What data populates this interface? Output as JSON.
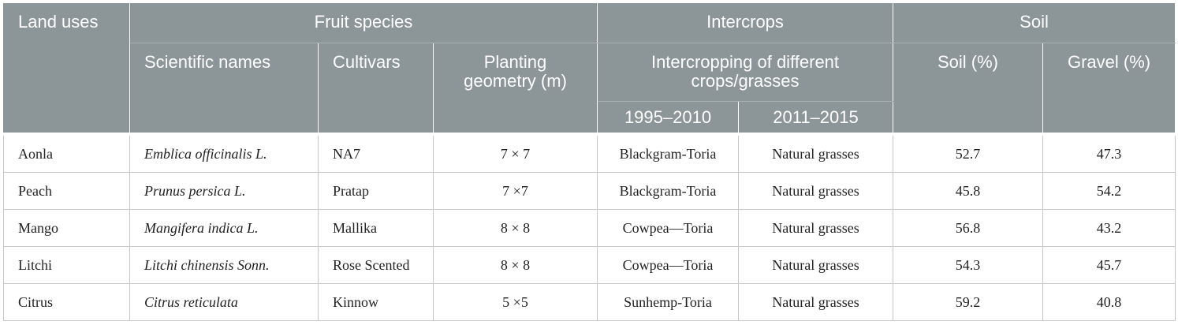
{
  "table": {
    "header": {
      "land_uses": "Land uses",
      "fruit_species": "Fruit species",
      "intercrops": "Intercrops",
      "soil_group": "Soil",
      "scientific_names": "Scientific names",
      "cultivars": "Cultivars",
      "planting_geometry": "Planting geometry (m)",
      "intercropping": "Intercropping of different crops/grasses",
      "period_1": "1995–2010",
      "period_2": "2011–2015",
      "soil": "Soil (%)",
      "gravel": "Gravel (%)"
    },
    "rows": [
      [
        "Aonla",
        "Emblica officinalis L.",
        "NA7",
        "7 × 7",
        "Blackgram-Toria",
        "Natural grasses",
        52.7,
        47.3
      ],
      [
        "Peach",
        "Prunus persica L.",
        "Pratap",
        "7 ×7",
        "Blackgram-Toria",
        "Natural grasses",
        45.8,
        54.2
      ],
      [
        "Mango",
        "Mangifera indica L.",
        "Mallika",
        "8 × 8",
        "Cowpea—Toria",
        "Natural grasses",
        56.8,
        43.2
      ],
      [
        "Litchi",
        "Litchi chinensis Sonn.",
        "Rose Scented",
        "8 × 8",
        "Cowpea—Toria",
        "Natural grasses",
        54.3,
        45.7
      ],
      [
        "Citrus",
        "Citrus reticulata",
        "Kinnow",
        "5 ×5",
        "Sunhemp-Toria",
        "Natural grasses",
        59.2,
        40.8
      ]
    ]
  }
}
